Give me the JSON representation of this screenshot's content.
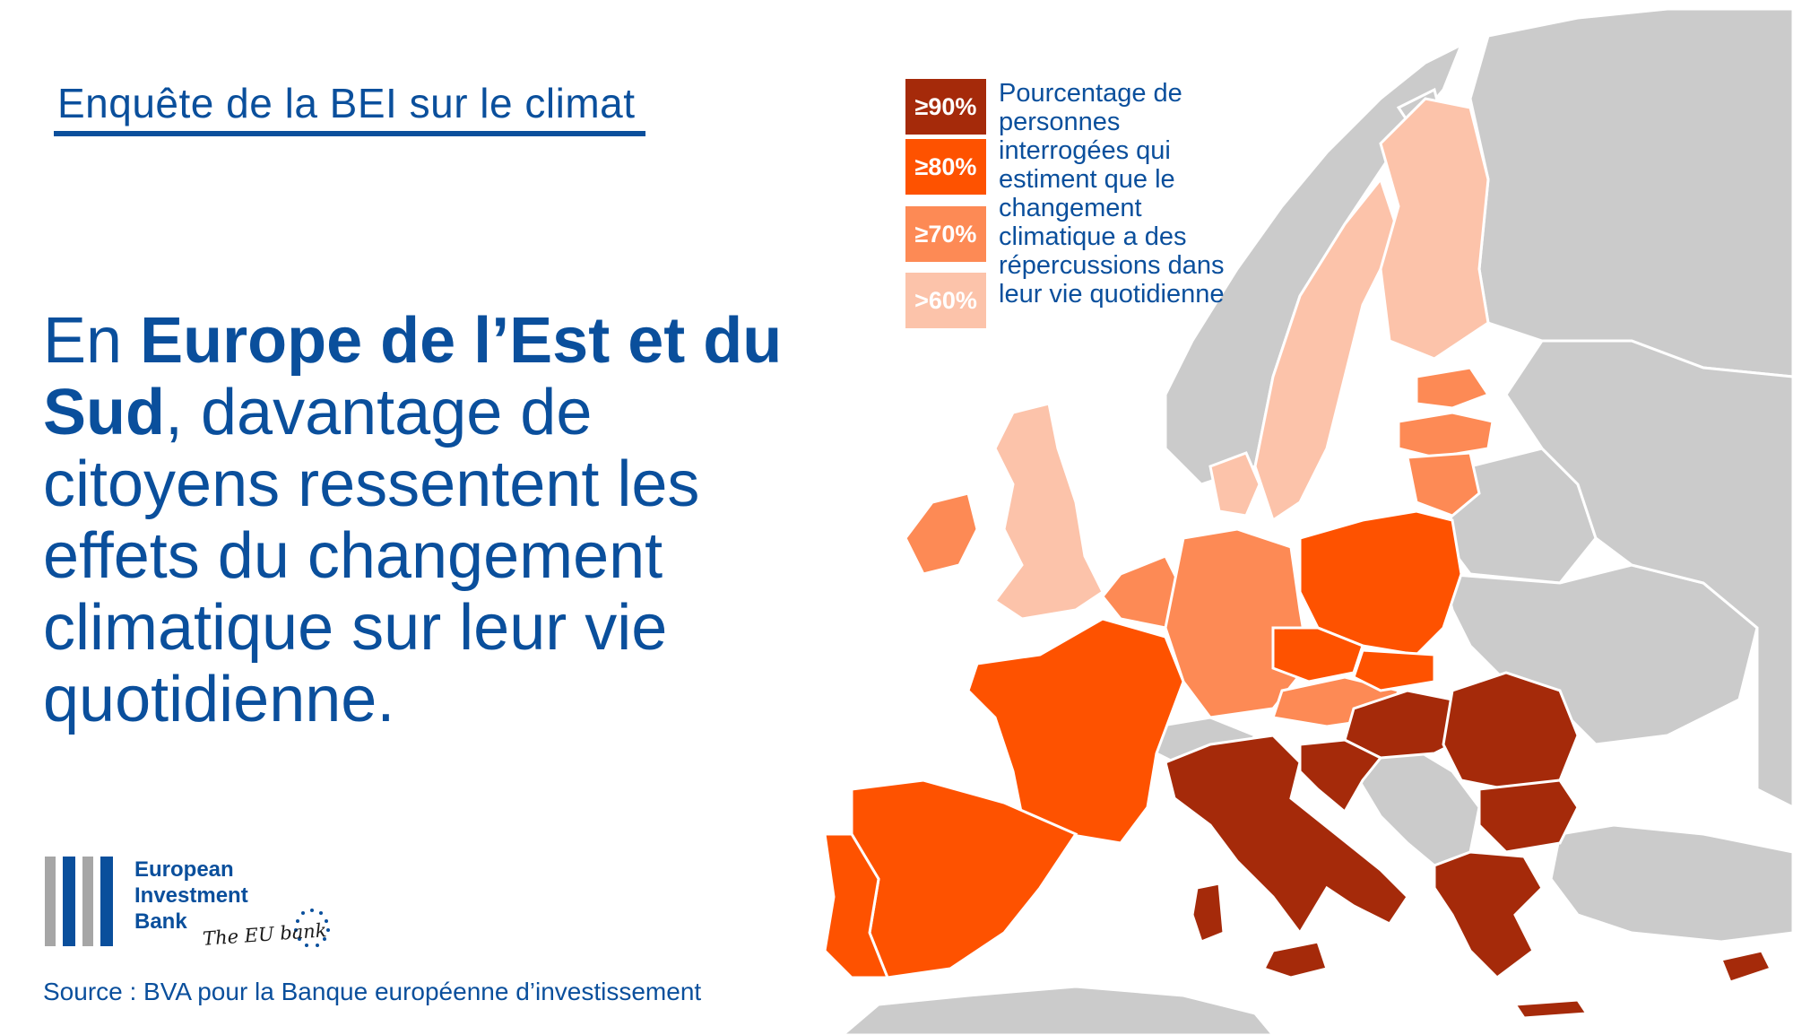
{
  "survey_title": "Enquête de la BEI sur le climat",
  "headline": {
    "part1": "En ",
    "bold": "Europe de l’Est et du Sud",
    "part2": ", davantage de citoyens ressentent les effets du changement climatique sur leur vie quotidienne."
  },
  "legend": {
    "items": [
      {
        "label": "≥90%",
        "color": "#a52a0a"
      },
      {
        "label": "≥80%",
        "color": "#fe5200"
      },
      {
        "label": "≥70%",
        "color": "#fd8a55"
      },
      {
        "label": ">60%",
        "color": "#fcc3aa"
      }
    ],
    "description": "Pourcentage de personnes interrogées qui estiment que le changement climatique a des répercussions dans leur vie quotidienne"
  },
  "colors": {
    "nondata": "#cbcbcb",
    "border": "#ffffff",
    "text": "#0a4f9c"
  },
  "logo": {
    "line1": "European",
    "line2": "Investment",
    "line3": "Bank",
    "tagline": "The EU bank"
  },
  "source": "Source : BVA pour la Banque européenne d’investissement"
}
